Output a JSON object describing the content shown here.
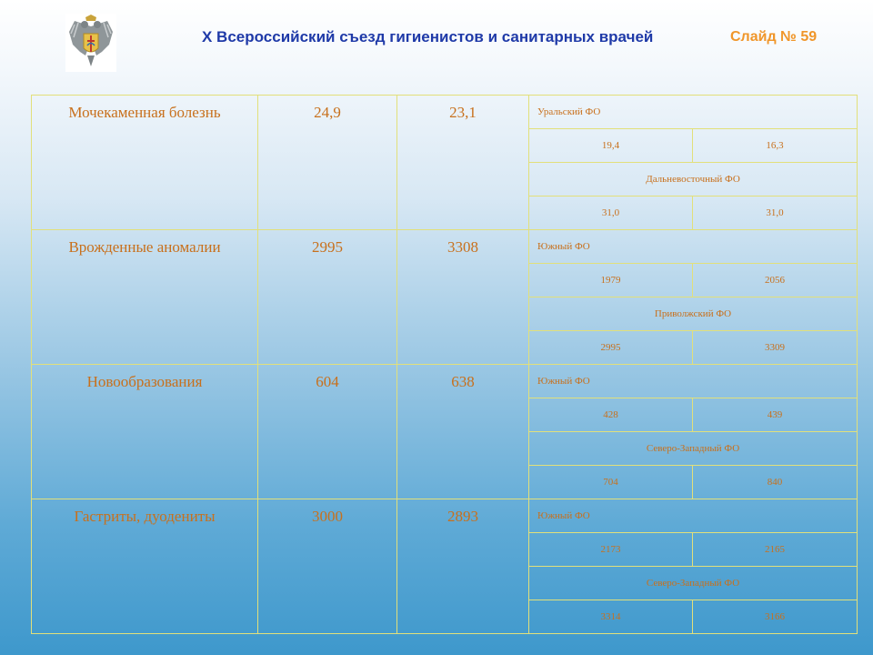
{
  "header": {
    "title": "X Всероссийский съезд гигиенистов и санитарных врачей",
    "slide_label": "Слайд № 59"
  },
  "rows": [
    {
      "disease": "Мочекаменная болезнь",
      "v1": "24,9",
      "v2": "23,1",
      "regions": [
        {
          "name": "Уральский ФО",
          "a": "19,4",
          "b": "16,3"
        },
        {
          "name": "Дальневосточный ФО",
          "a": "31,0",
          "b": "31,0"
        }
      ]
    },
    {
      "disease": "Врожденные аномалии",
      "v1": "2995",
      "v2": "3308",
      "regions": [
        {
          "name": "Южный ФО",
          "a": "1979",
          "b": "2056"
        },
        {
          "name": "Приволжский ФО",
          "a": "2995",
          "b": "3309"
        }
      ]
    },
    {
      "disease": "Новообразования",
      "v1": "604",
      "v2": "638",
      "regions": [
        {
          "name": "Южный ФО",
          "a": "428",
          "b": "439"
        },
        {
          "name": "Северо-Западный ФО",
          "a": "704",
          "b": "840"
        }
      ]
    },
    {
      "disease": "Гастриты, дуодениты",
      "v1": "3000",
      "v2": "2893",
      "regions": [
        {
          "name": "Южный ФО",
          "a": "2173",
          "b": "2165"
        },
        {
          "name": "Северо-Западный ФО",
          "a": "3314",
          "b": "3166"
        }
      ]
    }
  ]
}
